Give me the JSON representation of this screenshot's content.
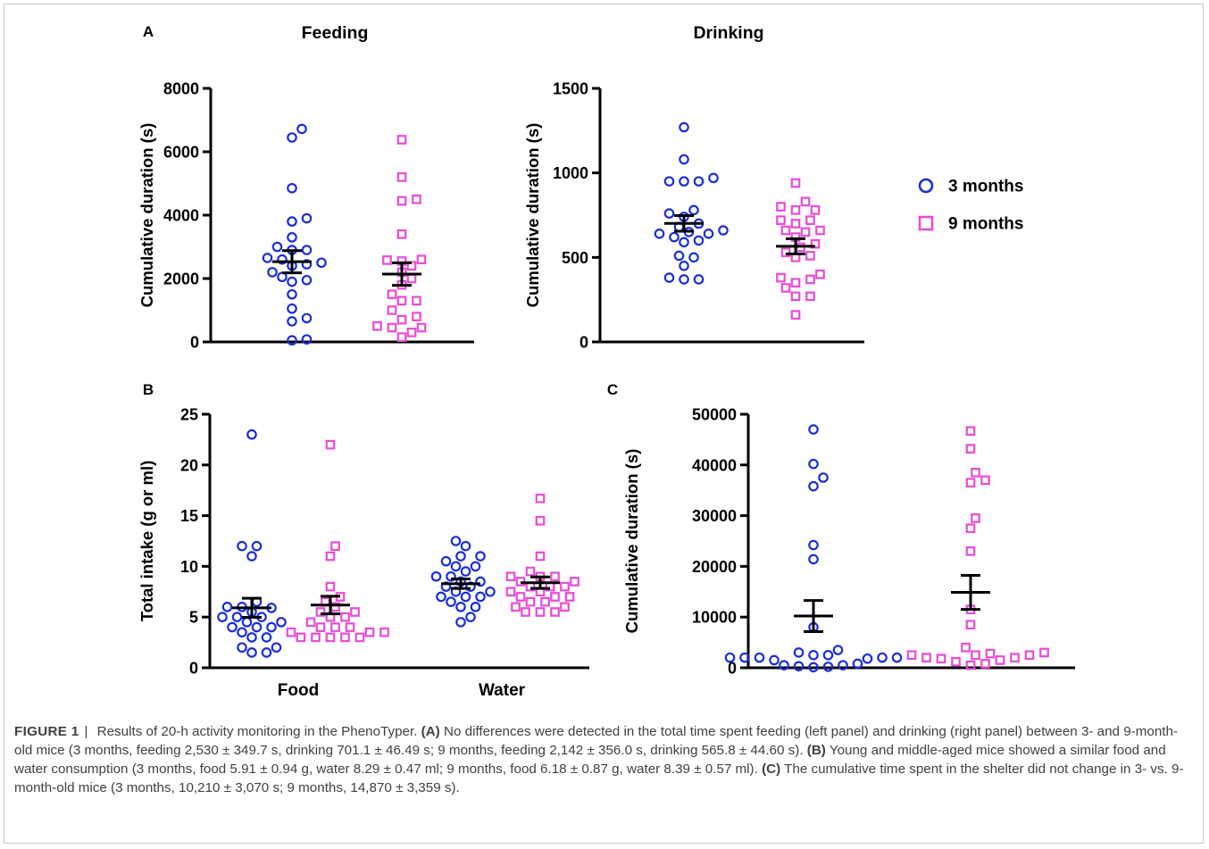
{
  "colors": {
    "m3": "#1a2ed6",
    "m9": "#e84bd6",
    "axis": "#000000",
    "caption_text": "#404040"
  },
  "legend": {
    "items": [
      {
        "label": "3 months",
        "marker": "circle",
        "color": "#1a2ed6"
      },
      {
        "label": "9 months",
        "marker": "square",
        "color": "#e84bd6"
      }
    ]
  },
  "chart_data": [
    {
      "id": "feeding",
      "panel_label": "A",
      "title": "Feeding",
      "type": "scatter",
      "ylabel": "Cumulative duration (s)",
      "ylim": [
        0,
        8000
      ],
      "yticks": [
        0,
        2000,
        4000,
        6000,
        8000
      ],
      "ytick_labels": [
        "0",
        "2000",
        "4000",
        "6000",
        "8000"
      ],
      "categories": [],
      "groups": [
        {
          "series": "3 months",
          "marker": "circle",
          "mean": 2530,
          "sem": 349.7,
          "values": [
            6720,
            6450,
            4850,
            3900,
            3800,
            3300,
            3000,
            2900,
            2900,
            2650,
            2600,
            2500,
            2450,
            2400,
            2200,
            2050,
            1950,
            1900,
            1500,
            1050,
            750,
            650,
            80,
            50
          ]
        },
        {
          "series": "9 months",
          "marker": "square",
          "mean": 2142,
          "sem": 356.0,
          "values": [
            6380,
            5200,
            4500,
            4450,
            3400,
            2600,
            2580,
            2550,
            2400,
            2200,
            2000,
            1800,
            1500,
            1300,
            1300,
            1000,
            800,
            700,
            500,
            450,
            450,
            300,
            150
          ]
        }
      ]
    },
    {
      "id": "drinking",
      "panel_label": "",
      "title": "Drinking",
      "type": "scatter",
      "ylabel": "Cumulative duration (s)",
      "ylim": [
        0,
        1500
      ],
      "yticks": [
        0,
        500,
        1000,
        1500
      ],
      "ytick_labels": [
        "0",
        "500",
        "1000",
        "1500"
      ],
      "categories": [],
      "groups": [
        {
          "series": "3 months",
          "marker": "circle",
          "mean": 701.1,
          "sem": 46.49,
          "values": [
            1270,
            1080,
            970,
            950,
            950,
            950,
            780,
            760,
            740,
            700,
            680,
            660,
            650,
            640,
            640,
            620,
            600,
            590,
            510,
            500,
            450,
            380,
            370,
            370
          ]
        },
        {
          "series": "9 months",
          "marker": "square",
          "mean": 565.8,
          "sem": 44.6,
          "values": [
            940,
            830,
            800,
            780,
            780,
            720,
            720,
            700,
            660,
            660,
            650,
            620,
            580,
            560,
            530,
            510,
            500,
            400,
            380,
            370,
            350,
            320,
            270,
            270,
            160
          ]
        }
      ]
    },
    {
      "id": "intake",
      "panel_label": "B",
      "title": "",
      "type": "scatter",
      "ylabel": "Total intake (g or ml)",
      "ylim": [
        0,
        25
      ],
      "yticks": [
        0,
        5,
        10,
        15,
        20,
        25
      ],
      "ytick_labels": [
        "0",
        "5",
        "10",
        "15",
        "20",
        "25"
      ],
      "categories": [
        "Food",
        "Water"
      ],
      "groups": [
        {
          "series": "3 months",
          "category": "Food",
          "marker": "circle",
          "mean": 5.91,
          "sem": 0.94,
          "values": [
            23.0,
            12.0,
            12.0,
            11.0,
            6.5,
            6.0,
            6.0,
            5.9,
            5.5,
            5.0,
            5.0,
            5.0,
            4.5,
            4.5,
            4.0,
            4.0,
            4.0,
            3.5,
            3.0,
            3.0,
            2.0,
            2.0,
            1.5,
            1.5
          ]
        },
        {
          "series": "9 months",
          "category": "Food",
          "marker": "square",
          "mean": 6.18,
          "sem": 0.87,
          "values": [
            22.0,
            12.0,
            11.0,
            8.0,
            7.0,
            6.5,
            6.0,
            5.5,
            5.5,
            5.0,
            5.0,
            4.5,
            4.0,
            4.0,
            4.0,
            3.5,
            3.5,
            3.5,
            3.0,
            3.0,
            3.0,
            3.0,
            3.0
          ]
        },
        {
          "series": "3 months",
          "category": "Water",
          "marker": "circle",
          "mean": 8.29,
          "sem": 0.47,
          "values": [
            12.5,
            12.0,
            11.0,
            11.0,
            10.5,
            10.0,
            10.0,
            9.5,
            9.0,
            9.0,
            8.5,
            8.5,
            8.0,
            8.0,
            7.5,
            7.5,
            7.0,
            7.0,
            7.0,
            6.5,
            6.0,
            6.0,
            5.0,
            4.5
          ]
        },
        {
          "series": "9 months",
          "category": "Water",
          "marker": "square",
          "mean": 8.39,
          "sem": 0.57,
          "values": [
            16.7,
            14.5,
            11.0,
            9.5,
            9.0,
            9.0,
            9.0,
            8.5,
            8.5,
            8.0,
            8.0,
            8.0,
            7.5,
            7.5,
            7.0,
            7.0,
            7.0,
            6.5,
            6.5,
            6.0,
            6.0,
            5.5,
            5.5,
            5.5
          ]
        }
      ]
    },
    {
      "id": "shelter",
      "panel_label": "C",
      "title": "",
      "type": "scatter",
      "ylabel": "Cumulative duration (s)",
      "ylim": [
        0,
        50000
      ],
      "yticks": [
        0,
        10000,
        20000,
        30000,
        40000,
        50000
      ],
      "ytick_labels": [
        "0",
        "10000",
        "20000",
        "30000",
        "40000",
        "50000"
      ],
      "categories": [],
      "groups": [
        {
          "series": "3 months",
          "marker": "circle",
          "mean": 10210,
          "sem": 3070,
          "values": [
            47000,
            40200,
            37500,
            35800,
            24200,
            21400,
            8000,
            3500,
            3000,
            2500,
            2500,
            2000,
            2000,
            2000,
            2000,
            2000,
            1800,
            1500,
            800,
            500,
            500,
            300,
            200,
            100
          ]
        },
        {
          "series": "9 months",
          "marker": "square",
          "mean": 14870,
          "sem": 3359,
          "values": [
            46700,
            43200,
            38500,
            37000,
            36500,
            29500,
            27500,
            23000,
            11500,
            8500,
            4000,
            3000,
            2800,
            2500,
            2500,
            2500,
            2000,
            2000,
            1800,
            1500,
            1200,
            800,
            500
          ]
        }
      ]
    }
  ],
  "caption": {
    "figure_label": "FIGURE 1",
    "separator": "|",
    "intro": "Results of 20-h activity monitoring in the PhenoTyper.",
    "a_label": "(A)",
    "a_text": "No differences were detected in the total time spent feeding (left panel) and drinking (right panel) between 3- and 9-month-old mice (3 months, feeding 2,530 ± 349.7 s, drinking 701.1 ± 46.49 s; 9 months, feeding 2,142 ± 356.0 s, drinking 565.8 ± 44.60 s).",
    "b_label": "(B)",
    "b_text": "Young and middle-aged mice showed a similar food and water consumption (3 months, food 5.91 ± 0.94 g, water 8.29 ± 0.47 ml; 9 months, food 6.18 ± 0.87 g, water 8.39 ± 0.57 ml).",
    "c_label": "(C)",
    "c_text": "The cumulative time spent in the shelter did not change in 3- vs. 9-month-old mice (3 months, 10,210 ± 3,070 s; 9 months, 14,870 ± 3,359 s)."
  }
}
